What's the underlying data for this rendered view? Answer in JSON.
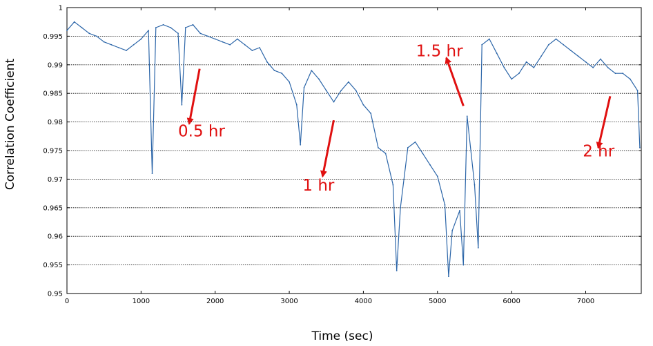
{
  "chart_data": {
    "type": "line",
    "title": "",
    "xlabel": "Time (sec)",
    "ylabel": "Correlation Coefficient",
    "xlim": [
      0,
      7750
    ],
    "ylim": [
      0.95,
      1.0
    ],
    "x_ticks": [
      0,
      1000,
      2000,
      3000,
      4000,
      5000,
      6000,
      7000
    ],
    "y_ticks": [
      0.95,
      0.955,
      0.96,
      0.965,
      0.97,
      0.975,
      0.98,
      0.985,
      0.99,
      0.995,
      1
    ],
    "y_tick_labels": [
      "0.95",
      "0.955",
      "0.96",
      "0.965",
      "0.97",
      "0.975",
      "0.98",
      "0.985",
      "0.99",
      "0.995",
      "1"
    ],
    "grid": "horizontal dotted",
    "series": [
      {
        "color": "#2b65a8",
        "x": [
          0,
          100,
          200,
          300,
          400,
          500,
          600,
          700,
          800,
          900,
          1000,
          1100,
          1150,
          1200,
          1300,
          1400,
          1500,
          1550,
          1600,
          1700,
          1800,
          1900,
          2000,
          2100,
          2200,
          2300,
          2400,
          2500,
          2600,
          2700,
          2800,
          2900,
          3000,
          3100,
          3150,
          3200,
          3300,
          3400,
          3500,
          3600,
          3700,
          3800,
          3900,
          4000,
          4100,
          4200,
          4300,
          4400,
          4450,
          4500,
          4600,
          4700,
          4800,
          4900,
          5000,
          5100,
          5150,
          5200,
          5300,
          5350,
          5400,
          5500,
          5550,
          5600,
          5700,
          5800,
          5900,
          6000,
          6100,
          6200,
          6300,
          6400,
          6500,
          6600,
          6700,
          6800,
          6900,
          7000,
          7100,
          7200,
          7300,
          7400,
          7500,
          7600,
          7700,
          7730
        ],
        "values": [
          0.996,
          0.9975,
          0.9965,
          0.9955,
          0.995,
          0.994,
          0.9935,
          0.993,
          0.9925,
          0.9935,
          0.9945,
          0.996,
          0.971,
          0.9965,
          0.997,
          0.9965,
          0.9955,
          0.983,
          0.9965,
          0.997,
          0.9955,
          0.995,
          0.9945,
          0.994,
          0.9935,
          0.9945,
          0.9935,
          0.9925,
          0.993,
          0.9905,
          0.989,
          0.9885,
          0.987,
          0.983,
          0.976,
          0.986,
          0.989,
          0.9875,
          0.9855,
          0.9835,
          0.9855,
          0.987,
          0.9855,
          0.983,
          0.9815,
          0.9755,
          0.9745,
          0.969,
          0.954,
          0.965,
          0.9755,
          0.9765,
          0.9745,
          0.9725,
          0.9705,
          0.9655,
          0.953,
          0.961,
          0.9645,
          0.955,
          0.981,
          0.969,
          0.958,
          0.9935,
          0.9945,
          0.992,
          0.9895,
          0.9875,
          0.9885,
          0.9905,
          0.9895,
          0.9915,
          0.9935,
          0.9945,
          0.9935,
          0.9925,
          0.9915,
          0.9905,
          0.9895,
          0.991,
          0.9895,
          0.9885,
          0.9885,
          0.9875,
          0.9855,
          0.9755
        ]
      }
    ],
    "annotations": [
      {
        "text": "0.5 hr",
        "x": 1500,
        "y": 0.9775,
        "arrow_from": [
          1790,
          0.9893
        ],
        "arrow_to": [
          1650,
          0.9797
        ]
      },
      {
        "text": "1 hr",
        "x": 3180,
        "y": 0.968,
        "arrow_from": [
          3600,
          0.9803
        ],
        "arrow_to": [
          3450,
          0.9705
        ]
      },
      {
        "text": "1.5 hr",
        "x": 4710,
        "y": 0.9915,
        "arrow_from": [
          5350,
          0.9828
        ],
        "arrow_to": [
          5120,
          0.9912
        ]
      },
      {
        "text": "2 hr",
        "x": 6960,
        "y": 0.974,
        "arrow_from": [
          7330,
          0.9845
        ],
        "arrow_to": [
          7170,
          0.9755
        ]
      }
    ]
  }
}
